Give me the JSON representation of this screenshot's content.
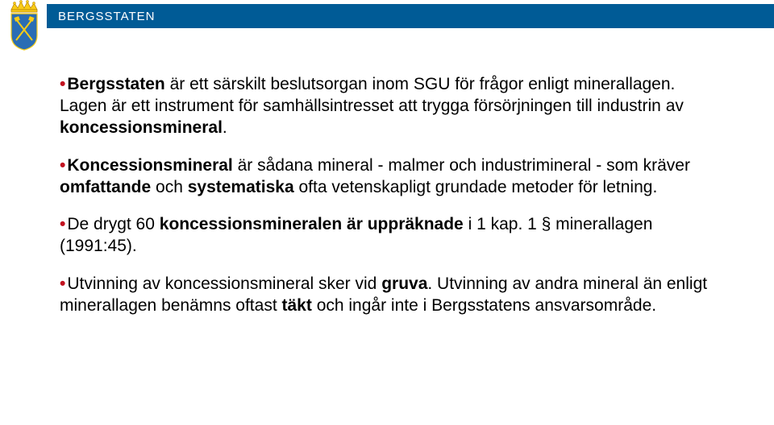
{
  "header": {
    "org_name": "BERGSSTATEN",
    "bar_color": "#005b96",
    "title_color": "#ffffff"
  },
  "bullet_color": "#c1121f",
  "text_color": "#000000",
  "background": "#ffffff",
  "bullets": [
    {
      "runs": [
        {
          "text": "Bergsstaten",
          "bold": true
        },
        {
          "text": " är ett särskilt beslutsorgan inom SGU för frågor enligt minerallagen. Lagen är ett instrument för samhällsintresset att trygga försörjningen till industrin av ",
          "bold": false
        },
        {
          "text": "koncessionsmineral",
          "bold": true
        },
        {
          "text": ".",
          "bold": false
        }
      ]
    },
    {
      "runs": [
        {
          "text": "Koncessionsmineral",
          "bold": true
        },
        {
          "text": " är sådana mineral - malmer och industrimineral - som kräver ",
          "bold": false
        },
        {
          "text": "omfattande",
          "bold": true
        },
        {
          "text": " och ",
          "bold": false
        },
        {
          "text": "systematiska",
          "bold": true
        },
        {
          "text": " ofta vetenskapligt grundade metoder för letning.",
          "bold": false
        }
      ]
    },
    {
      "runs": [
        {
          "text": "De drygt 60 ",
          "bold": false
        },
        {
          "text": "koncessionsmineralen är uppräknade",
          "bold": true
        },
        {
          "text": " i 1 kap. 1 § minerallagen (1991:45).",
          "bold": false
        }
      ]
    },
    {
      "runs": [
        {
          "text": "Utvinning av koncessionsmineral sker vid ",
          "bold": false
        },
        {
          "text": "gruva",
          "bold": true
        },
        {
          "text": ". Utvinning av andra mineral än enligt minerallagen benämns oftast ",
          "bold": false
        },
        {
          "text": "täkt",
          "bold": true
        },
        {
          "text": " och ingår inte i Bergsstatens ansvarsområde.",
          "bold": false
        }
      ]
    }
  ]
}
